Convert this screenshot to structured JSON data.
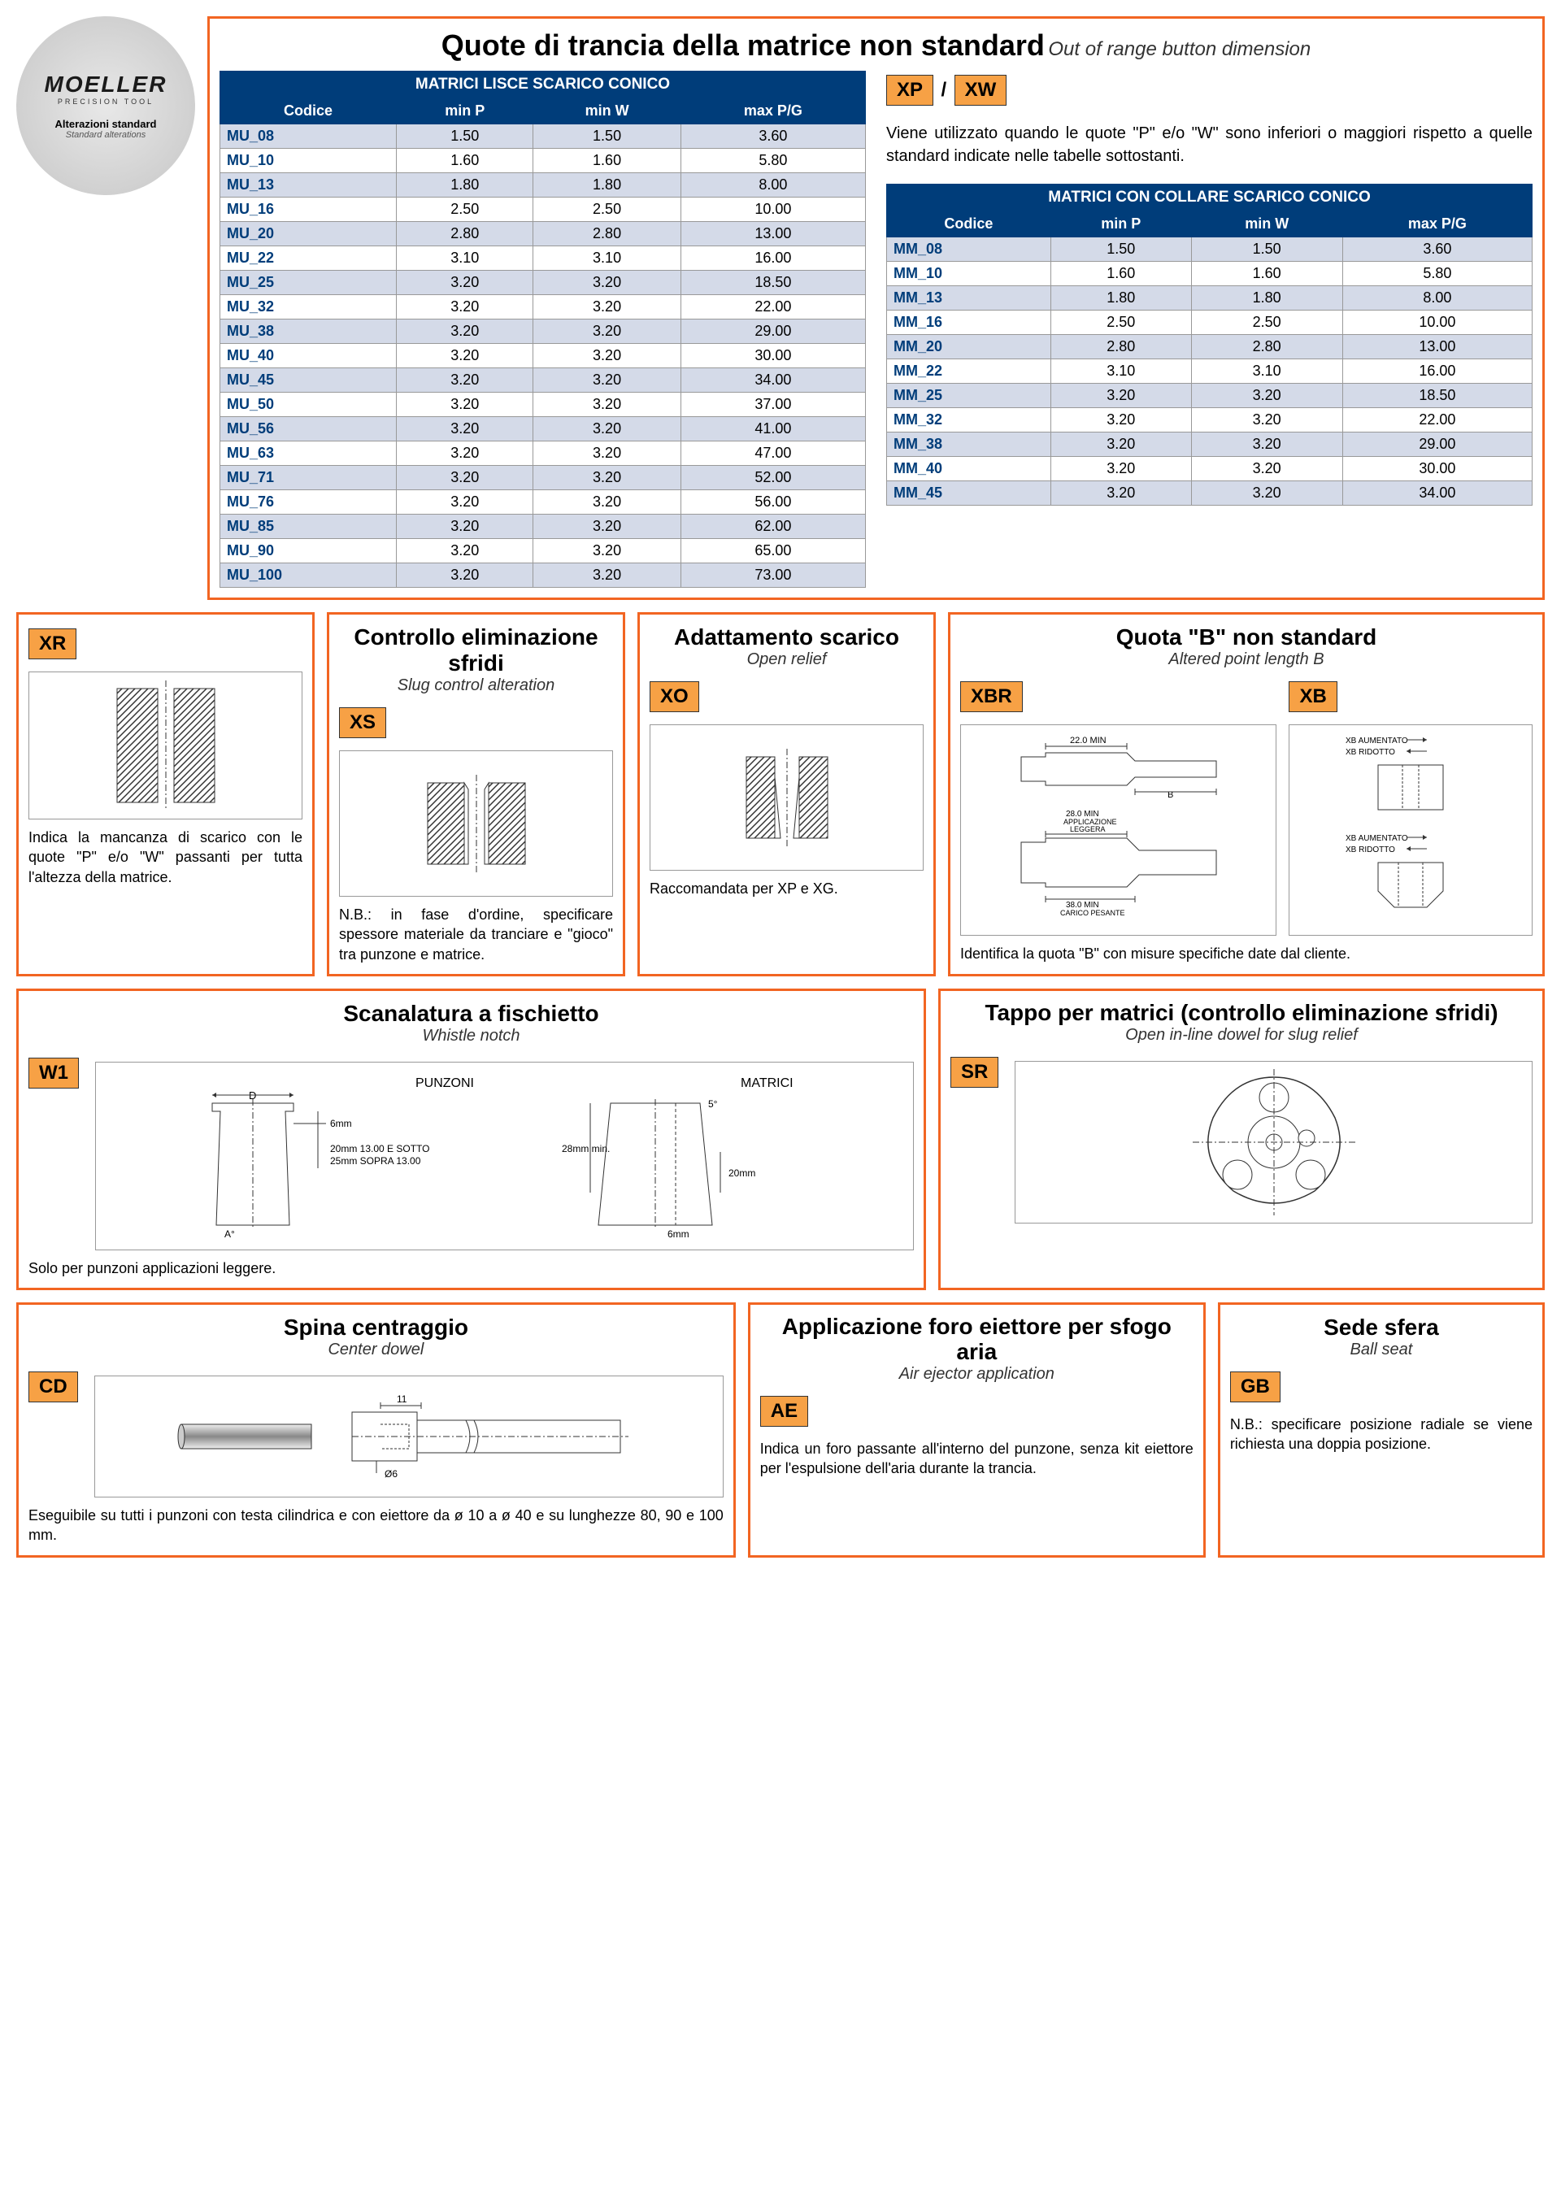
{
  "logo": {
    "brand": "MOELLER",
    "tagline": "PRECISION TOOL",
    "label_it": "Alterazioni standard",
    "label_en": "Standard alterations"
  },
  "main": {
    "title_it": "Quote di trancia della matrice non standard",
    "title_en": "Out of range button dimension",
    "xp_xw_desc": "Viene utilizzato quando le quote \"P\" e/o \"W\" sono inferiori o maggiori rispetto a quelle standard indicate nelle tabelle sottostanti.",
    "code_xp": "XP",
    "code_xw": "XW",
    "table1": {
      "title": "MATRICI LISCE SCARICO CONICO",
      "headers": [
        "Codice",
        "min P",
        "min W",
        "max P/G"
      ],
      "rows": [
        [
          "MU_08",
          "1.50",
          "1.50",
          "3.60"
        ],
        [
          "MU_10",
          "1.60",
          "1.60",
          "5.80"
        ],
        [
          "MU_13",
          "1.80",
          "1.80",
          "8.00"
        ],
        [
          "MU_16",
          "2.50",
          "2.50",
          "10.00"
        ],
        [
          "MU_20",
          "2.80",
          "2.80",
          "13.00"
        ],
        [
          "MU_22",
          "3.10",
          "3.10",
          "16.00"
        ],
        [
          "MU_25",
          "3.20",
          "3.20",
          "18.50"
        ],
        [
          "MU_32",
          "3.20",
          "3.20",
          "22.00"
        ],
        [
          "MU_38",
          "3.20",
          "3.20",
          "29.00"
        ],
        [
          "MU_40",
          "3.20",
          "3.20",
          "30.00"
        ],
        [
          "MU_45",
          "3.20",
          "3.20",
          "34.00"
        ],
        [
          "MU_50",
          "3.20",
          "3.20",
          "37.00"
        ],
        [
          "MU_56",
          "3.20",
          "3.20",
          "41.00"
        ],
        [
          "MU_63",
          "3.20",
          "3.20",
          "47.00"
        ],
        [
          "MU_71",
          "3.20",
          "3.20",
          "52.00"
        ],
        [
          "MU_76",
          "3.20",
          "3.20",
          "56.00"
        ],
        [
          "MU_85",
          "3.20",
          "3.20",
          "62.00"
        ],
        [
          "MU_90",
          "3.20",
          "3.20",
          "65.00"
        ],
        [
          "MU_100",
          "3.20",
          "3.20",
          "73.00"
        ]
      ]
    },
    "table2": {
      "title": "MATRICI CON COLLARE SCARICO CONICO",
      "headers": [
        "Codice",
        "min P",
        "min W",
        "max P/G"
      ],
      "rows": [
        [
          "MM_08",
          "1.50",
          "1.50",
          "3.60"
        ],
        [
          "MM_10",
          "1.60",
          "1.60",
          "5.80"
        ],
        [
          "MM_13",
          "1.80",
          "1.80",
          "8.00"
        ],
        [
          "MM_16",
          "2.50",
          "2.50",
          "10.00"
        ],
        [
          "MM_20",
          "2.80",
          "2.80",
          "13.00"
        ],
        [
          "MM_22",
          "3.10",
          "3.10",
          "16.00"
        ],
        [
          "MM_25",
          "3.20",
          "3.20",
          "18.50"
        ],
        [
          "MM_32",
          "3.20",
          "3.20",
          "22.00"
        ],
        [
          "MM_38",
          "3.20",
          "3.20",
          "29.00"
        ],
        [
          "MM_40",
          "3.20",
          "3.20",
          "30.00"
        ],
        [
          "MM_45",
          "3.20",
          "3.20",
          "34.00"
        ]
      ]
    }
  },
  "xr": {
    "code": "XR",
    "desc": "Indica la mancanza di scarico con le quote \"P\" e/o \"W\" passanti per tutta l'altezza della matrice."
  },
  "xs": {
    "title_it": "Controllo eliminazione sfridi",
    "title_en": "Slug control alteration",
    "code": "XS",
    "desc": "N.B.: in fase d'ordine, specificare spessore materiale da tranciare e \"gioco\" tra punzone e matrice."
  },
  "xo": {
    "title_it": "Adattamento scarico",
    "title_en": "Open relief",
    "code": "XO",
    "desc": "Raccomandata per XP e XG."
  },
  "xb": {
    "title_it": "Quota \"B\" non standard",
    "title_en": "Altered point length B",
    "code1": "XBR",
    "code2": "XB",
    "desc": "Identifica la quota \"B\" con misure specifiche date dal cliente.",
    "labels": {
      "l1": "22.0 MIN",
      "l2": "28.0 MIN",
      "l3": "APPLICAZIONE",
      "l4": "LEGGERA",
      "l5": "38.0 MIN",
      "l6": "CARICO PESANTE",
      "l7": "XB AUMENTATO",
      "l8": "XB RIDOTTO",
      "b": "B"
    }
  },
  "w1": {
    "title_it": "Scanalatura a fischietto",
    "title_en": "Whistle notch",
    "code": "W1",
    "desc": "Solo per punzoni applicazioni leggere.",
    "labels": {
      "punzoni": "PUNZONI",
      "matrici": "MATRICI",
      "d": "D",
      "six": "6mm",
      "l1": "20mm  13.00 E SOTTO",
      "l2": "25mm  SOPRA 13.00",
      "a": "A°",
      "l3": "28mm min.",
      "l4": "20mm",
      "l5": "5°"
    }
  },
  "sr": {
    "title_it": "Tappo per matrici (controllo eliminazione sfridi)",
    "title_en": "Open in-line dowel for slug relief",
    "code": "SR"
  },
  "cd": {
    "title_it": "Spina centraggio",
    "title_en": "Center dowel",
    "code": "CD",
    "desc": "Eseguibile su tutti i punzoni con testa cilindrica e con eiettore da ø 10 a ø 40 e su lunghezze 80, 90 e 100 mm.",
    "labels": {
      "eleven": "11",
      "diam": "Ø6"
    }
  },
  "ae": {
    "title_it": "Applicazione foro eiettore per sfogo aria",
    "title_en": "Air ejector application",
    "code": "AE",
    "desc": "Indica un foro passante all'interno del punzone, senza kit eiettore per l'espulsione dell'aria durante la trancia."
  },
  "gb": {
    "title_it": "Sede sfera",
    "title_en": "Ball seat",
    "code": "GB",
    "desc": "N.B.: specificare posizione radiale se viene richiesta una doppia posizione."
  }
}
